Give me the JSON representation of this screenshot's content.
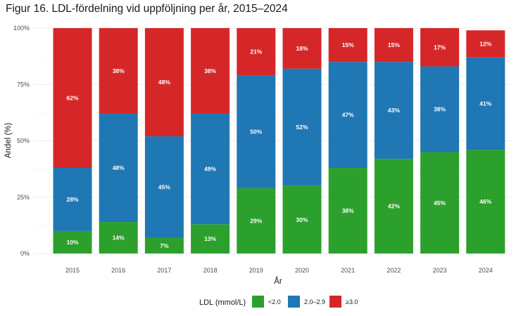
{
  "chart_data": {
    "type": "bar",
    "stacked": true,
    "title": "Figur 16. LDL-fördelning vid uppföljning per år, 2015–2024",
    "xlabel": "År",
    "ylabel": "Andel (%)",
    "ylim": [
      0,
      100
    ],
    "yticks": [
      0,
      25,
      50,
      75,
      100
    ],
    "ytick_labels": [
      "0%",
      "25%",
      "50%",
      "75%",
      "100%"
    ],
    "categories": [
      "2015",
      "2016",
      "2017",
      "2018",
      "2019",
      "2020",
      "2021",
      "2022",
      "2023",
      "2024"
    ],
    "series": [
      {
        "name": "<2.0",
        "color": "#2ca02c",
        "values": [
          10,
          14,
          7,
          13,
          29,
          30,
          38,
          42,
          45,
          46
        ],
        "labels": [
          "10%",
          "14%",
          "7%",
          "13%",
          "29%",
          "30%",
          "38%",
          "42%",
          "45%",
          "46%"
        ]
      },
      {
        "name": "2.0–2.9",
        "color": "#1f77b4",
        "values": [
          28,
          48,
          45,
          49,
          50,
          52,
          47,
          43,
          38,
          41
        ],
        "labels": [
          "28%",
          "48%",
          "45%",
          "49%",
          "50%",
          "52%",
          "47%",
          "43%",
          "38%",
          "41%"
        ]
      },
      {
        "name": "≥3.0",
        "color": "#d62728",
        "values": [
          62,
          38,
          48,
          38,
          21,
          18,
          15,
          15,
          17,
          12
        ],
        "labels": [
          "62%",
          "38%",
          "48%",
          "38%",
          "21%",
          "18%",
          "15%",
          "15%",
          "17%",
          "12%"
        ]
      }
    ],
    "legend": {
      "title": "LDL (mmol/L)",
      "position": "bottom"
    },
    "grid": true
  }
}
